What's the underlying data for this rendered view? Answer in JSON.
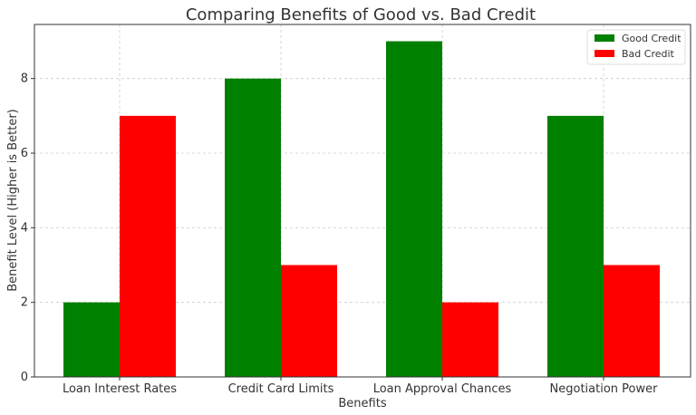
{
  "chart_data": {
    "type": "bar",
    "title": "Comparing Benefits of Good vs. Bad Credit",
    "xlabel": "Benefits",
    "ylabel": "Benefit Level (Higher is Better)",
    "categories": [
      "Loan Interest Rates",
      "Credit Card Limits",
      "Loan Approval Chances",
      "Negotiation Power"
    ],
    "series": [
      {
        "name": "Good Credit",
        "color": "#008000",
        "values": [
          2,
          8,
          9,
          7
        ]
      },
      {
        "name": "Bad Credit",
        "color": "#ff0000",
        "values": [
          7,
          3,
          2,
          3
        ]
      }
    ],
    "ylim": [
      0,
      9.45
    ],
    "yticks": [
      0,
      2,
      4,
      6,
      8
    ],
    "grid": true,
    "legend_position": "top-right"
  }
}
